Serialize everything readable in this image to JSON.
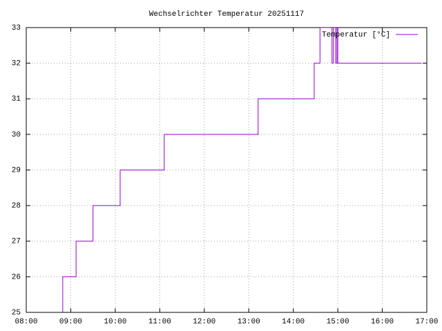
{
  "chart_data": {
    "type": "line",
    "title": "Wechselrichter Temperatur 20251117",
    "x": [
      8.82,
      8.82,
      9.12,
      9.12,
      9.5,
      9.5,
      10.11,
      10.11,
      11.1,
      11.1,
      13.21,
      13.21,
      14.47,
      14.47,
      14.6,
      14.6,
      14.87,
      14.87,
      14.9,
      14.9,
      14.95,
      14.95,
      14.98,
      14.98,
      15.0,
      15.0,
      16.88
    ],
    "series": [
      {
        "name": "Temperatur [°C]",
        "color": "#9400d3",
        "values": [
          25,
          26,
          26,
          27,
          27,
          28,
          28,
          29,
          29,
          30,
          30,
          31,
          31,
          32,
          32,
          33,
          33,
          32,
          32,
          33,
          33,
          32,
          32,
          33,
          33,
          32,
          32
        ]
      }
    ],
    "xlim": [
      8,
      17
    ],
    "xticks": [
      {
        "value": 8,
        "label": "08:00"
      },
      {
        "value": 9,
        "label": "09:00"
      },
      {
        "value": 10,
        "label": "10:00"
      },
      {
        "value": 11,
        "label": "11:00"
      },
      {
        "value": 12,
        "label": "12:00"
      },
      {
        "value": 13,
        "label": "13:00"
      },
      {
        "value": 14,
        "label": "14:00"
      },
      {
        "value": 15,
        "label": "15:00"
      },
      {
        "value": 16,
        "label": "16:00"
      },
      {
        "value": 17,
        "label": "17:00"
      }
    ],
    "ylim": [
      25,
      33
    ],
    "yticks": [
      25,
      26,
      27,
      28,
      29,
      30,
      31,
      32,
      33
    ],
    "grid": true,
    "legend": "top-right"
  }
}
